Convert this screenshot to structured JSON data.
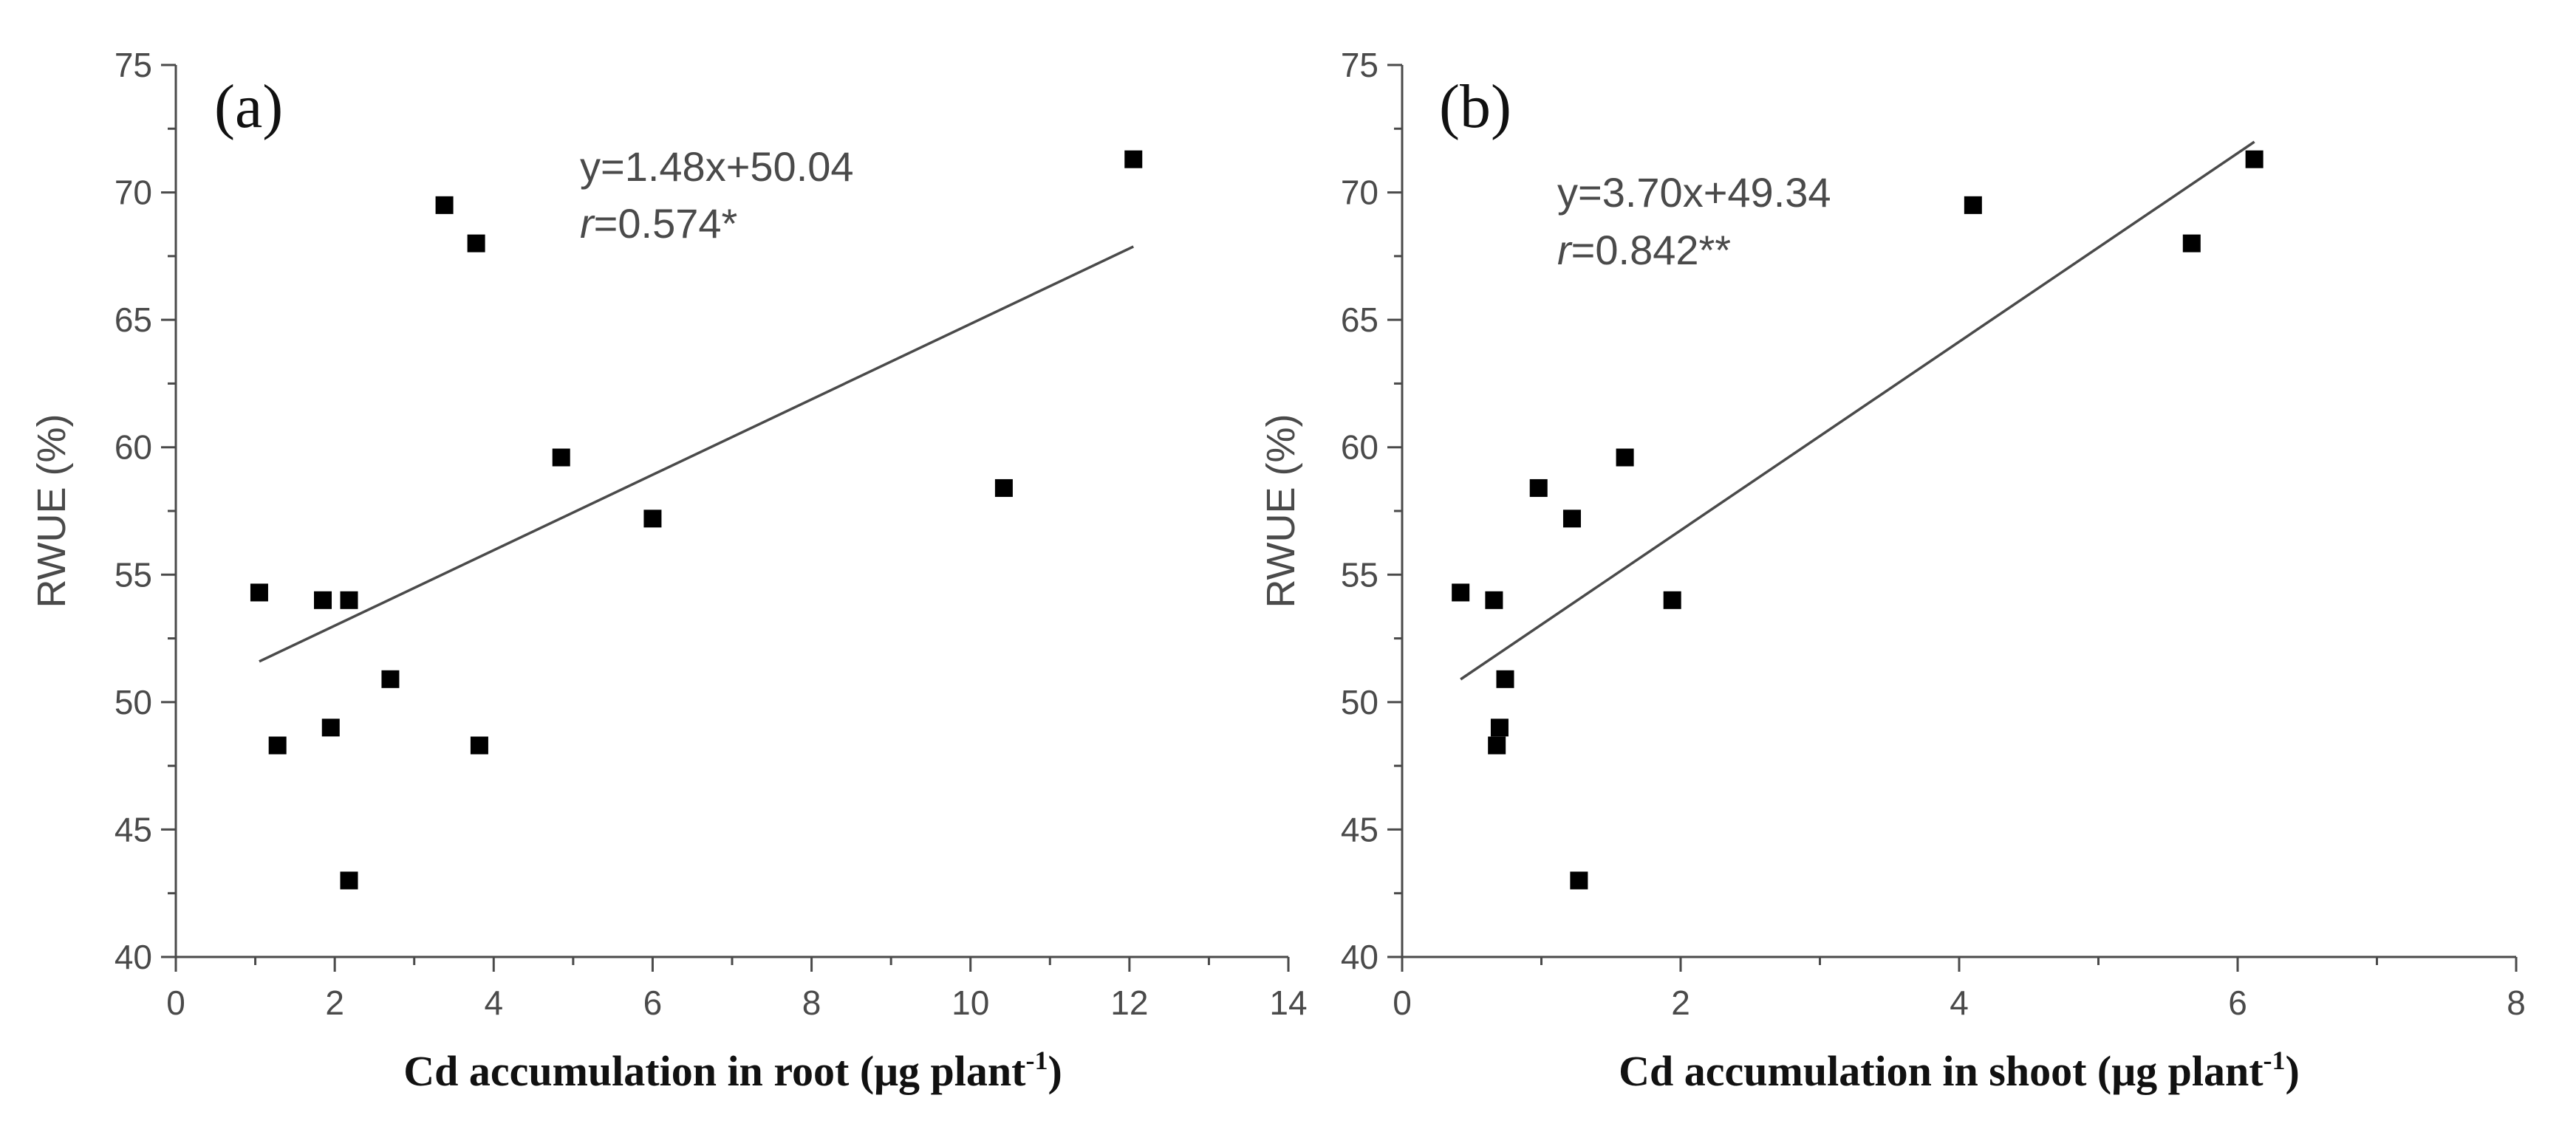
{
  "chart_data": [
    {
      "type": "scatter",
      "panel_label": "(a)",
      "xlabel": "Cd accumulation in root (μg plant",
      "xlabel_sup": "-1",
      "xlabel_close": ")",
      "ylabel": "RWUE (%)",
      "xlim": [
        0,
        14
      ],
      "ylim": [
        40,
        75
      ],
      "xticks": [
        0,
        2,
        4,
        6,
        8,
        10,
        12,
        14
      ],
      "yticks": [
        40,
        45,
        50,
        55,
        60,
        65,
        70,
        75
      ],
      "points": [
        {
          "x": 1.05,
          "y": 54.3
        },
        {
          "x": 1.28,
          "y": 48.3
        },
        {
          "x": 1.85,
          "y": 54.0
        },
        {
          "x": 1.95,
          "y": 49.0
        },
        {
          "x": 2.18,
          "y": 54.0
        },
        {
          "x": 2.18,
          "y": 43.0
        },
        {
          "x": 2.7,
          "y": 50.9
        },
        {
          "x": 3.38,
          "y": 69.5
        },
        {
          "x": 3.78,
          "y": 68.0
        },
        {
          "x": 3.82,
          "y": 48.3
        },
        {
          "x": 4.85,
          "y": 59.6
        },
        {
          "x": 6.0,
          "y": 57.2
        },
        {
          "x": 10.42,
          "y": 58.4
        },
        {
          "x": 12.05,
          "y": 71.3
        }
      ],
      "fit": {
        "slope": 1.48,
        "intercept": 50.04,
        "x_range": [
          1.05,
          12.05
        ]
      },
      "equation": "y=1.48x+50.04",
      "r_symbol": "r",
      "r_text": "=0.574*"
    },
    {
      "type": "scatter",
      "panel_label": "(b)",
      "xlabel": "Cd accumulation in shoot (μg plant",
      "xlabel_sup": "-1",
      "xlabel_close": ")",
      "ylabel": "RWUE (%)",
      "xlim": [
        0,
        8
      ],
      "ylim": [
        40,
        75
      ],
      "xticks": [
        0,
        2,
        4,
        6,
        8
      ],
      "yticks": [
        40,
        45,
        50,
        55,
        60,
        65,
        70,
        75
      ],
      "points": [
        {
          "x": 0.42,
          "y": 54.3
        },
        {
          "x": 0.66,
          "y": 54.0
        },
        {
          "x": 0.68,
          "y": 48.3
        },
        {
          "x": 0.7,
          "y": 49.0
        },
        {
          "x": 0.74,
          "y": 50.9
        },
        {
          "x": 0.98,
          "y": 58.4
        },
        {
          "x": 1.22,
          "y": 57.2
        },
        {
          "x": 1.27,
          "y": 43.0
        },
        {
          "x": 1.6,
          "y": 59.6
        },
        {
          "x": 1.94,
          "y": 54.0
        },
        {
          "x": 4.1,
          "y": 69.5
        },
        {
          "x": 5.67,
          "y": 68.0
        },
        {
          "x": 6.12,
          "y": 71.3
        }
      ],
      "fit": {
        "slope": 3.7,
        "intercept": 49.34,
        "x_range": [
          0.42,
          6.12
        ]
      },
      "equation": "y=3.70x+49.34",
      "r_symbol": "r",
      "r_text": "=0.842**"
    }
  ]
}
